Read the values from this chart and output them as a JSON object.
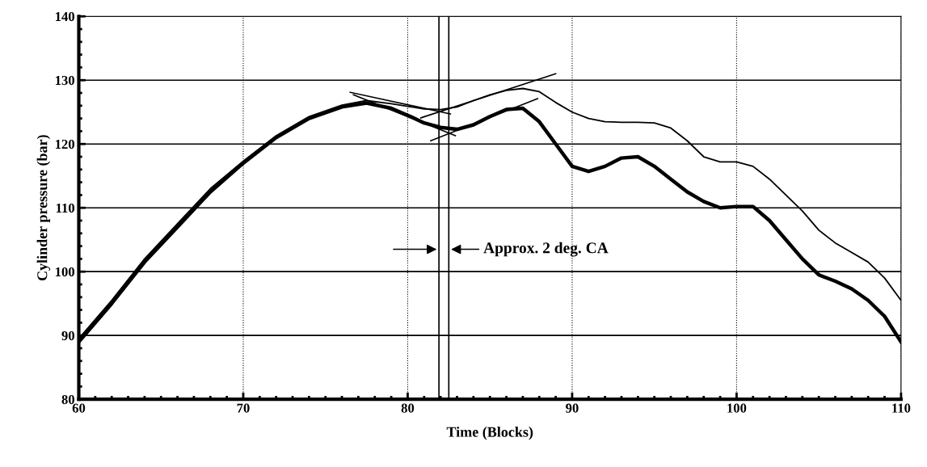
{
  "chart_data": {
    "type": "line",
    "xlabel": "Time (Blocks)",
    "ylabel": "Cylinder pressure (bar)",
    "xlim": [
      60,
      110
    ],
    "xticks": [
      60,
      70,
      80,
      90,
      100,
      110
    ],
    "ylim": [
      80,
      140
    ],
    "yticks": [
      80,
      90,
      100,
      110,
      120,
      130,
      140
    ],
    "grid": true,
    "line_style": "solid",
    "marker": "none",
    "x": [
      60,
      62,
      64,
      66,
      68,
      70,
      72,
      74,
      76,
      77.5,
      79,
      80,
      81,
      82,
      83,
      84,
      85,
      86,
      87,
      88,
      89,
      90,
      91,
      92,
      93,
      94,
      95,
      96,
      97,
      98,
      99,
      100,
      101,
      102,
      103,
      104,
      105,
      106,
      107,
      108,
      109,
      110
    ],
    "series": [
      {
        "color": "#000000",
        "values": [
          89,
          95,
          101.5,
          107,
          112.5,
          117,
          121,
          124,
          125.8,
          126.4,
          125.6,
          124.5,
          123.3,
          122.6,
          122.3,
          123,
          124.3,
          125.4,
          125.6,
          123.5,
          120,
          116.5,
          115.7,
          116.5,
          117.8,
          118,
          116.5,
          114.5,
          112.5,
          111,
          110,
          110.2,
          110.2,
          108,
          105,
          102,
          99.5,
          98.5,
          97.3,
          95.5,
          93,
          89
        ]
      },
      {
        "color": "#000000",
        "values": [
          89.5,
          95.5,
          102,
          107.5,
          113,
          117.3,
          121.3,
          124.3,
          126.1,
          126.8,
          126.3,
          125.9,
          125.5,
          125.4,
          125.8,
          126.8,
          127.7,
          128.4,
          128.7,
          128.2,
          126.5,
          125,
          124,
          123.5,
          123.4,
          123.4,
          123.3,
          122.5,
          120.5,
          118,
          117.2,
          117.2,
          116.5,
          114.5,
          112,
          109.5,
          106.5,
          104.5,
          103,
          101.5,
          99,
          95.5
        ]
      },
      {
        "type": "line",
        "color": "#000000",
        "x": [
          76.5,
          82.6
        ],
        "values": [
          128.1,
          124.7
        ]
      },
      {
        "type": "line",
        "color": "#000000",
        "x": [
          80.8,
          89.0
        ],
        "values": [
          124.1,
          131.0
        ]
      },
      {
        "type": "line",
        "color": "#000000",
        "x": [
          81.4,
          87.9
        ],
        "values": [
          120.5,
          127.1
        ]
      },
      {
        "type": "line",
        "color": "#000000",
        "x": [
          76.7,
          82.9
        ],
        "values": [
          127.7,
          121.3
        ]
      }
    ],
    "ref_lines": [
      {
        "axis": "x",
        "value": 81.9,
        "color": "#000000"
      },
      {
        "axis": "x",
        "value": 82.5,
        "color": "#000000"
      }
    ],
    "annotations": [
      {
        "text": "Approx. 2 deg. CA",
        "x": 82.5,
        "y": 103.5
      }
    ]
  }
}
